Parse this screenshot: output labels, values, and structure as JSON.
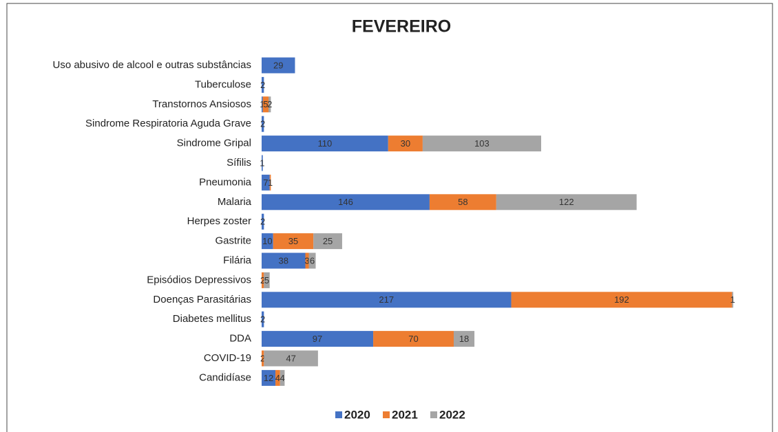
{
  "chart_data": {
    "type": "bar",
    "orientation": "horizontal",
    "stacked": true,
    "title": "FEVEREIRO",
    "categories": [
      "Uso abusivo de alcool e outras substâncias",
      "Tuberculose",
      "Transtornos Ansiosos",
      "Sindrome Respiratoria Aguda Grave",
      "Sindrome Gripal",
      "Sífilis",
      "Pneumonia",
      "Malaria",
      "Herpes zoster",
      "Gastrite",
      "Filária",
      "Episódios Depressivos",
      "Doenças Parasitárias",
      "Diabetes mellitus",
      "DDA",
      "COVID-19",
      "Candidíase"
    ],
    "series": [
      {
        "name": "2020",
        "color": "#4472c4",
        "values": [
          29,
          2,
          1,
          2,
          110,
          1,
          7,
          146,
          2,
          10,
          38,
          null,
          217,
          2,
          97,
          null,
          12
        ]
      },
      {
        "name": "2021",
        "color": "#ed7d31",
        "values": [
          null,
          null,
          5,
          null,
          30,
          null,
          1,
          58,
          null,
          35,
          3,
          2,
          192,
          null,
          70,
          2,
          4
        ]
      },
      {
        "name": "2022",
        "color": "#a5a5a5",
        "values": [
          null,
          null,
          2,
          null,
          103,
          null,
          null,
          122,
          null,
          25,
          6,
          5,
          1,
          null,
          18,
          47,
          4
        ]
      }
    ],
    "legend": "bottom"
  }
}
